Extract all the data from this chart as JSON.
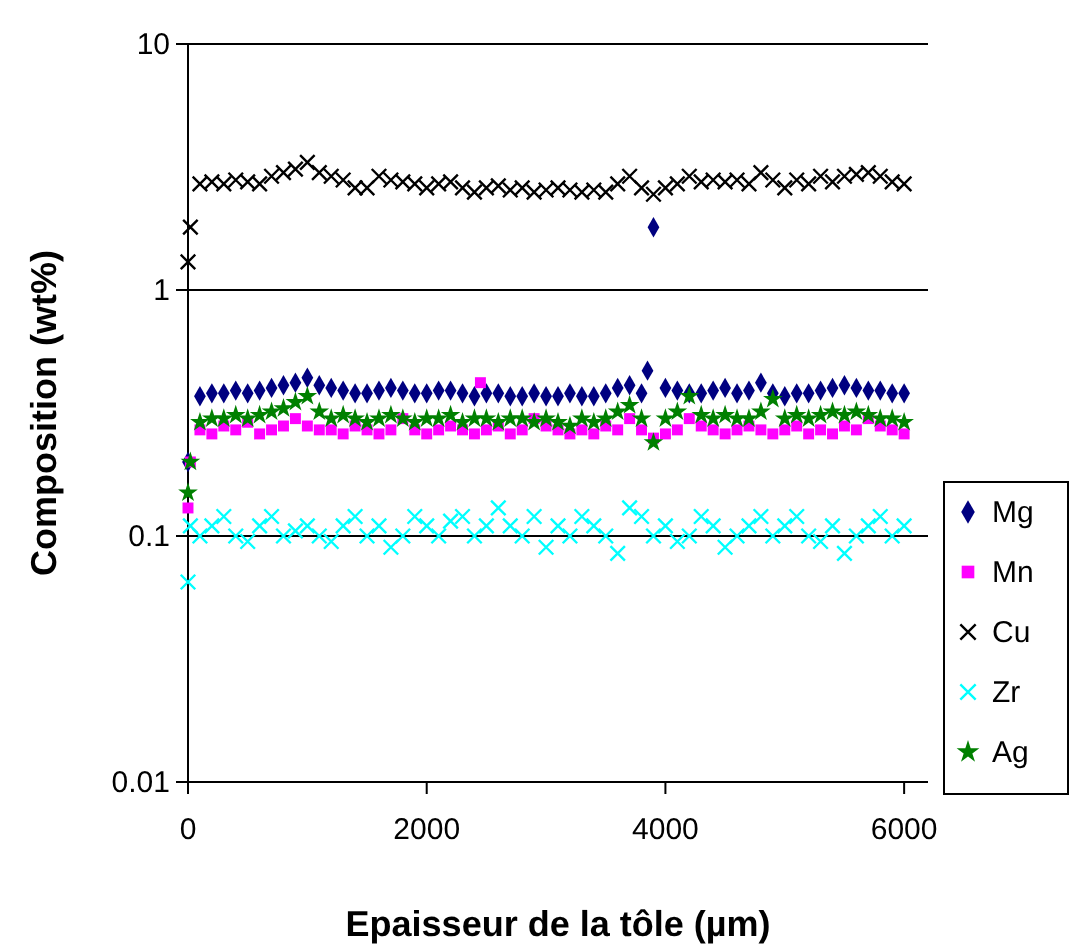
{
  "chart_data": {
    "type": "scatter",
    "xlabel": "Epaisseur de la tôle (µm)",
    "ylabel": "Composition (wt%)",
    "log": "y",
    "xlim": [
      0,
      6200
    ],
    "xticks": [
      0,
      2000,
      4000,
      6000
    ],
    "ylim": [
      0.01,
      10
    ],
    "yticks": [
      0.01,
      0.1,
      1,
      10
    ],
    "grid": "y",
    "legend": "right",
    "series": [
      {
        "name": "Mg",
        "color": "#000080",
        "marker": "diamond",
        "x": [
          0,
          100,
          200,
          300,
          400,
          500,
          600,
          700,
          800,
          900,
          1000,
          1100,
          1200,
          1300,
          1400,
          1500,
          1600,
          1700,
          1800,
          1900,
          2000,
          2100,
          2200,
          2300,
          2400,
          2500,
          2600,
          2700,
          2800,
          2900,
          3000,
          3100,
          3200,
          3300,
          3400,
          3500,
          3600,
          3700,
          3800,
          3850,
          3900,
          4000,
          4100,
          4200,
          4300,
          4400,
          4500,
          4600,
          4700,
          4800,
          4900,
          5000,
          5100,
          5200,
          5300,
          5400,
          5500,
          5600,
          5700,
          5800,
          5900,
          6000
        ],
        "values": [
          0.2,
          0.37,
          0.38,
          0.38,
          0.39,
          0.38,
          0.39,
          0.4,
          0.41,
          0.42,
          0.44,
          0.41,
          0.4,
          0.39,
          0.38,
          0.38,
          0.39,
          0.4,
          0.39,
          0.38,
          0.38,
          0.39,
          0.39,
          0.38,
          0.37,
          0.38,
          0.38,
          0.37,
          0.37,
          0.38,
          0.37,
          0.37,
          0.38,
          0.37,
          0.37,
          0.38,
          0.4,
          0.41,
          0.38,
          0.47,
          1.8,
          0.4,
          0.39,
          0.38,
          0.38,
          0.39,
          0.4,
          0.38,
          0.39,
          0.42,
          0.38,
          0.37,
          0.38,
          0.38,
          0.39,
          0.4,
          0.41,
          0.4,
          0.39,
          0.39,
          0.38,
          0.38
        ]
      },
      {
        "name": "Mn",
        "color": "#ff00ff",
        "marker": "square",
        "x": [
          0,
          20,
          100,
          200,
          300,
          400,
          500,
          600,
          700,
          800,
          900,
          1000,
          1100,
          1200,
          1300,
          1400,
          1500,
          1600,
          1700,
          1800,
          1900,
          2000,
          2100,
          2200,
          2300,
          2400,
          2450,
          2500,
          2600,
          2700,
          2800,
          2900,
          3000,
          3100,
          3200,
          3300,
          3400,
          3500,
          3600,
          3700,
          3800,
          3900,
          4000,
          4100,
          4200,
          4300,
          4400,
          4500,
          4600,
          4700,
          4800,
          4900,
          5000,
          5100,
          5200,
          5300,
          5400,
          5500,
          5600,
          5700,
          5800,
          5900,
          6000
        ],
        "values": [
          0.13,
          0.2,
          0.27,
          0.26,
          0.28,
          0.27,
          0.29,
          0.26,
          0.27,
          0.28,
          0.3,
          0.28,
          0.27,
          0.27,
          0.26,
          0.28,
          0.27,
          0.26,
          0.27,
          0.3,
          0.27,
          0.26,
          0.27,
          0.28,
          0.27,
          0.26,
          0.42,
          0.27,
          0.28,
          0.26,
          0.27,
          0.3,
          0.28,
          0.27,
          0.26,
          0.27,
          0.26,
          0.28,
          0.27,
          0.3,
          0.27,
          0.25,
          0.26,
          0.27,
          0.3,
          0.28,
          0.27,
          0.26,
          0.27,
          0.28,
          0.27,
          0.26,
          0.27,
          0.28,
          0.26,
          0.27,
          0.26,
          0.28,
          0.27,
          0.3,
          0.28,
          0.27,
          0.26
        ]
      },
      {
        "name": "Cu",
        "color": "#000000",
        "marker": "cross",
        "x": [
          0,
          20,
          100,
          200,
          300,
          400,
          500,
          600,
          700,
          800,
          900,
          1000,
          1100,
          1200,
          1300,
          1400,
          1500,
          1600,
          1700,
          1800,
          1900,
          2000,
          2100,
          2200,
          2300,
          2400,
          2500,
          2600,
          2700,
          2800,
          2900,
          3000,
          3100,
          3200,
          3300,
          3400,
          3500,
          3600,
          3700,
          3800,
          3900,
          4000,
          4100,
          4200,
          4300,
          4400,
          4500,
          4600,
          4700,
          4800,
          4900,
          5000,
          5100,
          5200,
          5300,
          5400,
          5500,
          5600,
          5700,
          5800,
          5900,
          6000
        ],
        "values": [
          1.3,
          1.8,
          2.7,
          2.75,
          2.7,
          2.8,
          2.75,
          2.7,
          2.9,
          3.0,
          3.1,
          3.3,
          3.0,
          2.9,
          2.8,
          2.6,
          2.6,
          2.9,
          2.8,
          2.75,
          2.7,
          2.6,
          2.7,
          2.75,
          2.6,
          2.5,
          2.6,
          2.65,
          2.55,
          2.6,
          2.5,
          2.55,
          2.6,
          2.55,
          2.5,
          2.55,
          2.5,
          2.7,
          2.9,
          2.6,
          2.45,
          2.6,
          2.7,
          2.9,
          2.75,
          2.8,
          2.75,
          2.8,
          2.7,
          3.0,
          2.8,
          2.6,
          2.8,
          2.7,
          2.9,
          2.75,
          2.9,
          2.95,
          3.0,
          2.9,
          2.75,
          2.7
        ]
      },
      {
        "name": "Zr",
        "color": "#00ffff",
        "marker": "cross",
        "x": [
          0,
          20,
          100,
          200,
          300,
          400,
          500,
          600,
          700,
          800,
          900,
          1000,
          1100,
          1200,
          1300,
          1400,
          1500,
          1600,
          1700,
          1800,
          1900,
          2000,
          2100,
          2200,
          2300,
          2400,
          2500,
          2600,
          2700,
          2800,
          2900,
          3000,
          3100,
          3200,
          3300,
          3400,
          3500,
          3600,
          3700,
          3800,
          3900,
          4000,
          4100,
          4200,
          4300,
          4400,
          4500,
          4600,
          4700,
          4800,
          4900,
          5000,
          5100,
          5200,
          5300,
          5400,
          5500,
          5600,
          5700,
          5800,
          5900,
          6000
        ],
        "values": [
          0.065,
          0.11,
          0.1,
          0.11,
          0.12,
          0.1,
          0.095,
          0.11,
          0.12,
          0.1,
          0.105,
          0.11,
          0.1,
          0.095,
          0.11,
          0.12,
          0.1,
          0.11,
          0.09,
          0.1,
          0.12,
          0.11,
          0.1,
          0.115,
          0.12,
          0.1,
          0.11,
          0.13,
          0.11,
          0.1,
          0.12,
          0.09,
          0.11,
          0.1,
          0.12,
          0.11,
          0.1,
          0.085,
          0.13,
          0.12,
          0.1,
          0.11,
          0.095,
          0.1,
          0.12,
          0.11,
          0.09,
          0.1,
          0.11,
          0.12,
          0.1,
          0.11,
          0.12,
          0.1,
          0.095,
          0.11,
          0.085,
          0.1,
          0.11,
          0.12,
          0.1,
          0.11
        ]
      },
      {
        "name": "Ag",
        "color": "#008000",
        "marker": "star",
        "x": [
          0,
          20,
          100,
          200,
          300,
          400,
          500,
          600,
          700,
          800,
          900,
          1000,
          1100,
          1200,
          1300,
          1400,
          1500,
          1600,
          1700,
          1800,
          1900,
          2000,
          2100,
          2200,
          2300,
          2400,
          2500,
          2600,
          2700,
          2800,
          2900,
          3000,
          3100,
          3200,
          3300,
          3400,
          3500,
          3600,
          3700,
          3800,
          3900,
          4000,
          4100,
          4200,
          4300,
          4400,
          4500,
          4600,
          4700,
          4800,
          4900,
          5000,
          5100,
          5200,
          5300,
          5400,
          5500,
          5600,
          5700,
          5800,
          5900,
          6000
        ],
        "values": [
          0.15,
          0.2,
          0.29,
          0.3,
          0.3,
          0.31,
          0.3,
          0.31,
          0.32,
          0.33,
          0.35,
          0.37,
          0.32,
          0.3,
          0.31,
          0.3,
          0.29,
          0.3,
          0.31,
          0.3,
          0.29,
          0.3,
          0.3,
          0.31,
          0.29,
          0.3,
          0.3,
          0.29,
          0.3,
          0.3,
          0.29,
          0.3,
          0.29,
          0.28,
          0.3,
          0.29,
          0.3,
          0.32,
          0.34,
          0.3,
          0.24,
          0.3,
          0.32,
          0.37,
          0.31,
          0.3,
          0.31,
          0.3,
          0.3,
          0.32,
          0.36,
          0.3,
          0.31,
          0.3,
          0.31,
          0.32,
          0.31,
          0.32,
          0.31,
          0.3,
          0.3,
          0.29
        ]
      }
    ]
  }
}
